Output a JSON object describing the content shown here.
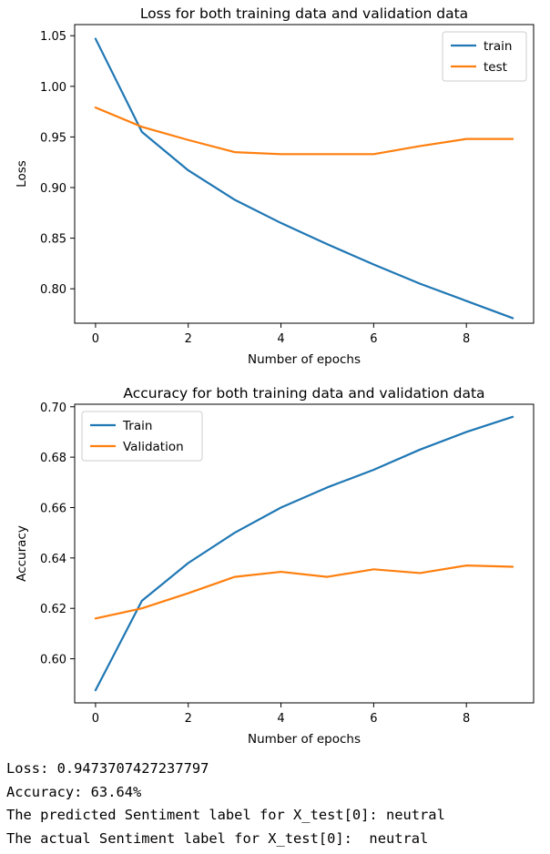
{
  "chart_data": [
    {
      "type": "line",
      "title": "Loss for both training data and validation data",
      "xlabel": "Number of epochs",
      "ylabel": "Loss",
      "x": [
        0,
        1,
        2,
        3,
        4,
        5,
        6,
        7,
        8,
        9
      ],
      "xlim": [
        -0.45,
        9.45
      ],
      "ylim": [
        0.766,
        1.061
      ],
      "xticks": [
        0,
        2,
        4,
        6,
        8
      ],
      "yticks": [
        0.8,
        0.85,
        0.9,
        0.95,
        1.0,
        1.05
      ],
      "ytick_labels": [
        "0.80",
        "0.85",
        "0.90",
        "0.95",
        "1.00",
        "1.05"
      ],
      "legend_position": "top-right",
      "grid": false,
      "series": [
        {
          "name": "train",
          "color": "#1f77b4",
          "values": [
            1.047,
            0.955,
            0.917,
            0.888,
            0.865,
            0.844,
            0.824,
            0.805,
            0.788,
            0.771
          ]
        },
        {
          "name": "test",
          "color": "#ff7f0e",
          "values": [
            0.979,
            0.96,
            0.947,
            0.935,
            0.933,
            0.933,
            0.933,
            0.941,
            0.948,
            0.948
          ]
        }
      ]
    },
    {
      "type": "line",
      "title": "Accuracy for both training data and validation data",
      "xlabel": "Number of epochs",
      "ylabel": "Accuracy",
      "x": [
        0,
        1,
        2,
        3,
        4,
        5,
        6,
        7,
        8,
        9
      ],
      "xlim": [
        -0.45,
        9.45
      ],
      "ylim": [
        0.5825,
        0.701
      ],
      "xticks": [
        0,
        2,
        4,
        6,
        8
      ],
      "yticks": [
        0.6,
        0.62,
        0.64,
        0.66,
        0.68,
        0.7
      ],
      "ytick_labels": [
        "0.60",
        "0.62",
        "0.64",
        "0.66",
        "0.68",
        "0.70"
      ],
      "legend_position": "top-left",
      "grid": false,
      "series": [
        {
          "name": "Train",
          "color": "#1f77b4",
          "values": [
            0.5875,
            0.623,
            0.638,
            0.65,
            0.66,
            0.668,
            0.675,
            0.683,
            0.69,
            0.696
          ]
        },
        {
          "name": "Validation",
          "color": "#ff7f0e",
          "values": [
            0.616,
            0.62,
            0.626,
            0.6325,
            0.6345,
            0.6325,
            0.6355,
            0.634,
            0.637,
            0.6365
          ]
        }
      ]
    }
  ],
  "console": {
    "loss_line": "Loss: 0.9473707427237797",
    "accuracy_line": "Accuracy: 63.64%",
    "predicted_line": "The predicted Sentiment label for X_test[0]: neutral",
    "actual_line": "The actual Sentiment label for X_test[0]:  neutral"
  }
}
